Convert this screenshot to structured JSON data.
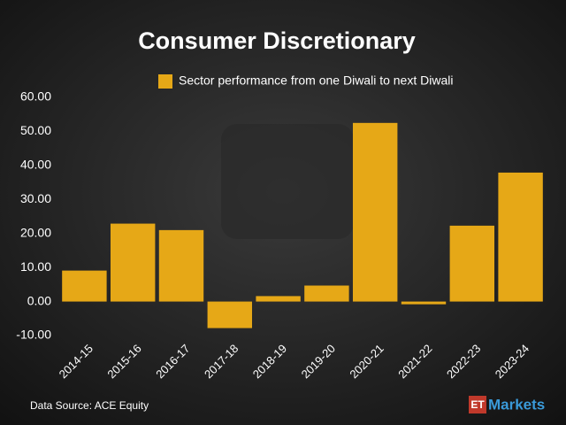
{
  "chart_data": {
    "type": "bar",
    "title": "Consumer Discretionary",
    "legend": "Sector performance from one Diwali to next Diwali",
    "categories": [
      "2014-15",
      "2015-16",
      "2016-17",
      "2017-18",
      "2018-19",
      "2019-20",
      "2020-21",
      "2021-22",
      "2022-23",
      "2023-24"
    ],
    "values": [
      9.1,
      22.9,
      21.0,
      -7.8,
      1.6,
      4.7,
      52.5,
      -0.8,
      22.3,
      37.9
    ],
    "color": "#e6a817",
    "ylim": [
      -10,
      60
    ],
    "yticks": [
      {
        "value": -10,
        "label": "-10.00"
      },
      {
        "value": 0,
        "label": "0.00"
      },
      {
        "value": 10,
        "label": "10.00"
      },
      {
        "value": 20,
        "label": "20.00"
      },
      {
        "value": 30,
        "label": "30.00"
      },
      {
        "value": 40,
        "label": "40.00"
      },
      {
        "value": 50,
        "label": "50.00"
      },
      {
        "value": 60,
        "label": "60.00"
      }
    ],
    "grid": false,
    "source": "Data Source: ACE Equity"
  },
  "logo": {
    "et": "ET",
    "markets": "Markets"
  }
}
